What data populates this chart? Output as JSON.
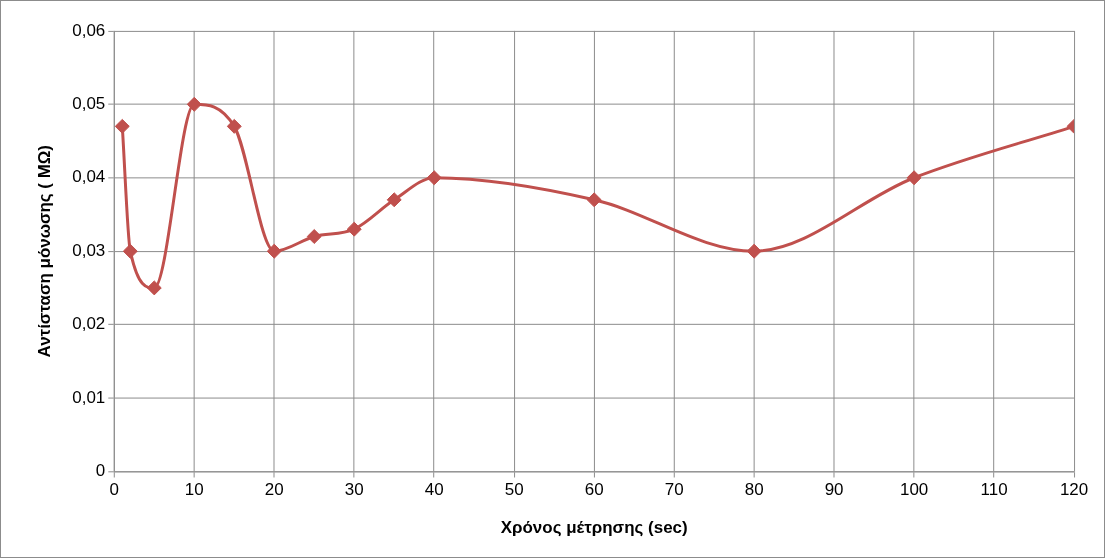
{
  "chart_data": {
    "type": "line",
    "xlabel": "Χρόνος μέτρησης (sec)",
    "ylabel": "Αντίσταση μόνωσης ( ΜΩ)",
    "x": [
      1,
      2,
      5,
      10,
      15,
      20,
      25,
      30,
      35,
      40,
      60,
      80,
      100,
      120
    ],
    "series": [
      {
        "color": "#c0504d",
        "values": [
          0.047,
          0.03,
          0.025,
          0.05,
          0.047,
          0.03,
          0.032,
          0.033,
          0.037,
          0.04,
          0.037,
          0.03,
          0.04,
          0.047
        ]
      }
    ],
    "xlim": [
      0,
      120
    ],
    "xticks": [
      0,
      10,
      20,
      30,
      40,
      50,
      60,
      70,
      80,
      90,
      100,
      110,
      120
    ],
    "ylim": [
      0,
      0.06
    ],
    "yticks": [
      {
        "value": 0,
        "label": "0"
      },
      {
        "value": 0.01,
        "label": "0,01"
      },
      {
        "value": 0.02,
        "label": "0,02"
      },
      {
        "value": 0.03,
        "label": "0,03"
      },
      {
        "value": 0.04,
        "label": "0,04"
      },
      {
        "value": 0.05,
        "label": "0,05"
      },
      {
        "value": 0.06,
        "label": "0,06"
      }
    ],
    "grid": true,
    "legend": false,
    "marker": "diamond",
    "line_style": "solid"
  }
}
